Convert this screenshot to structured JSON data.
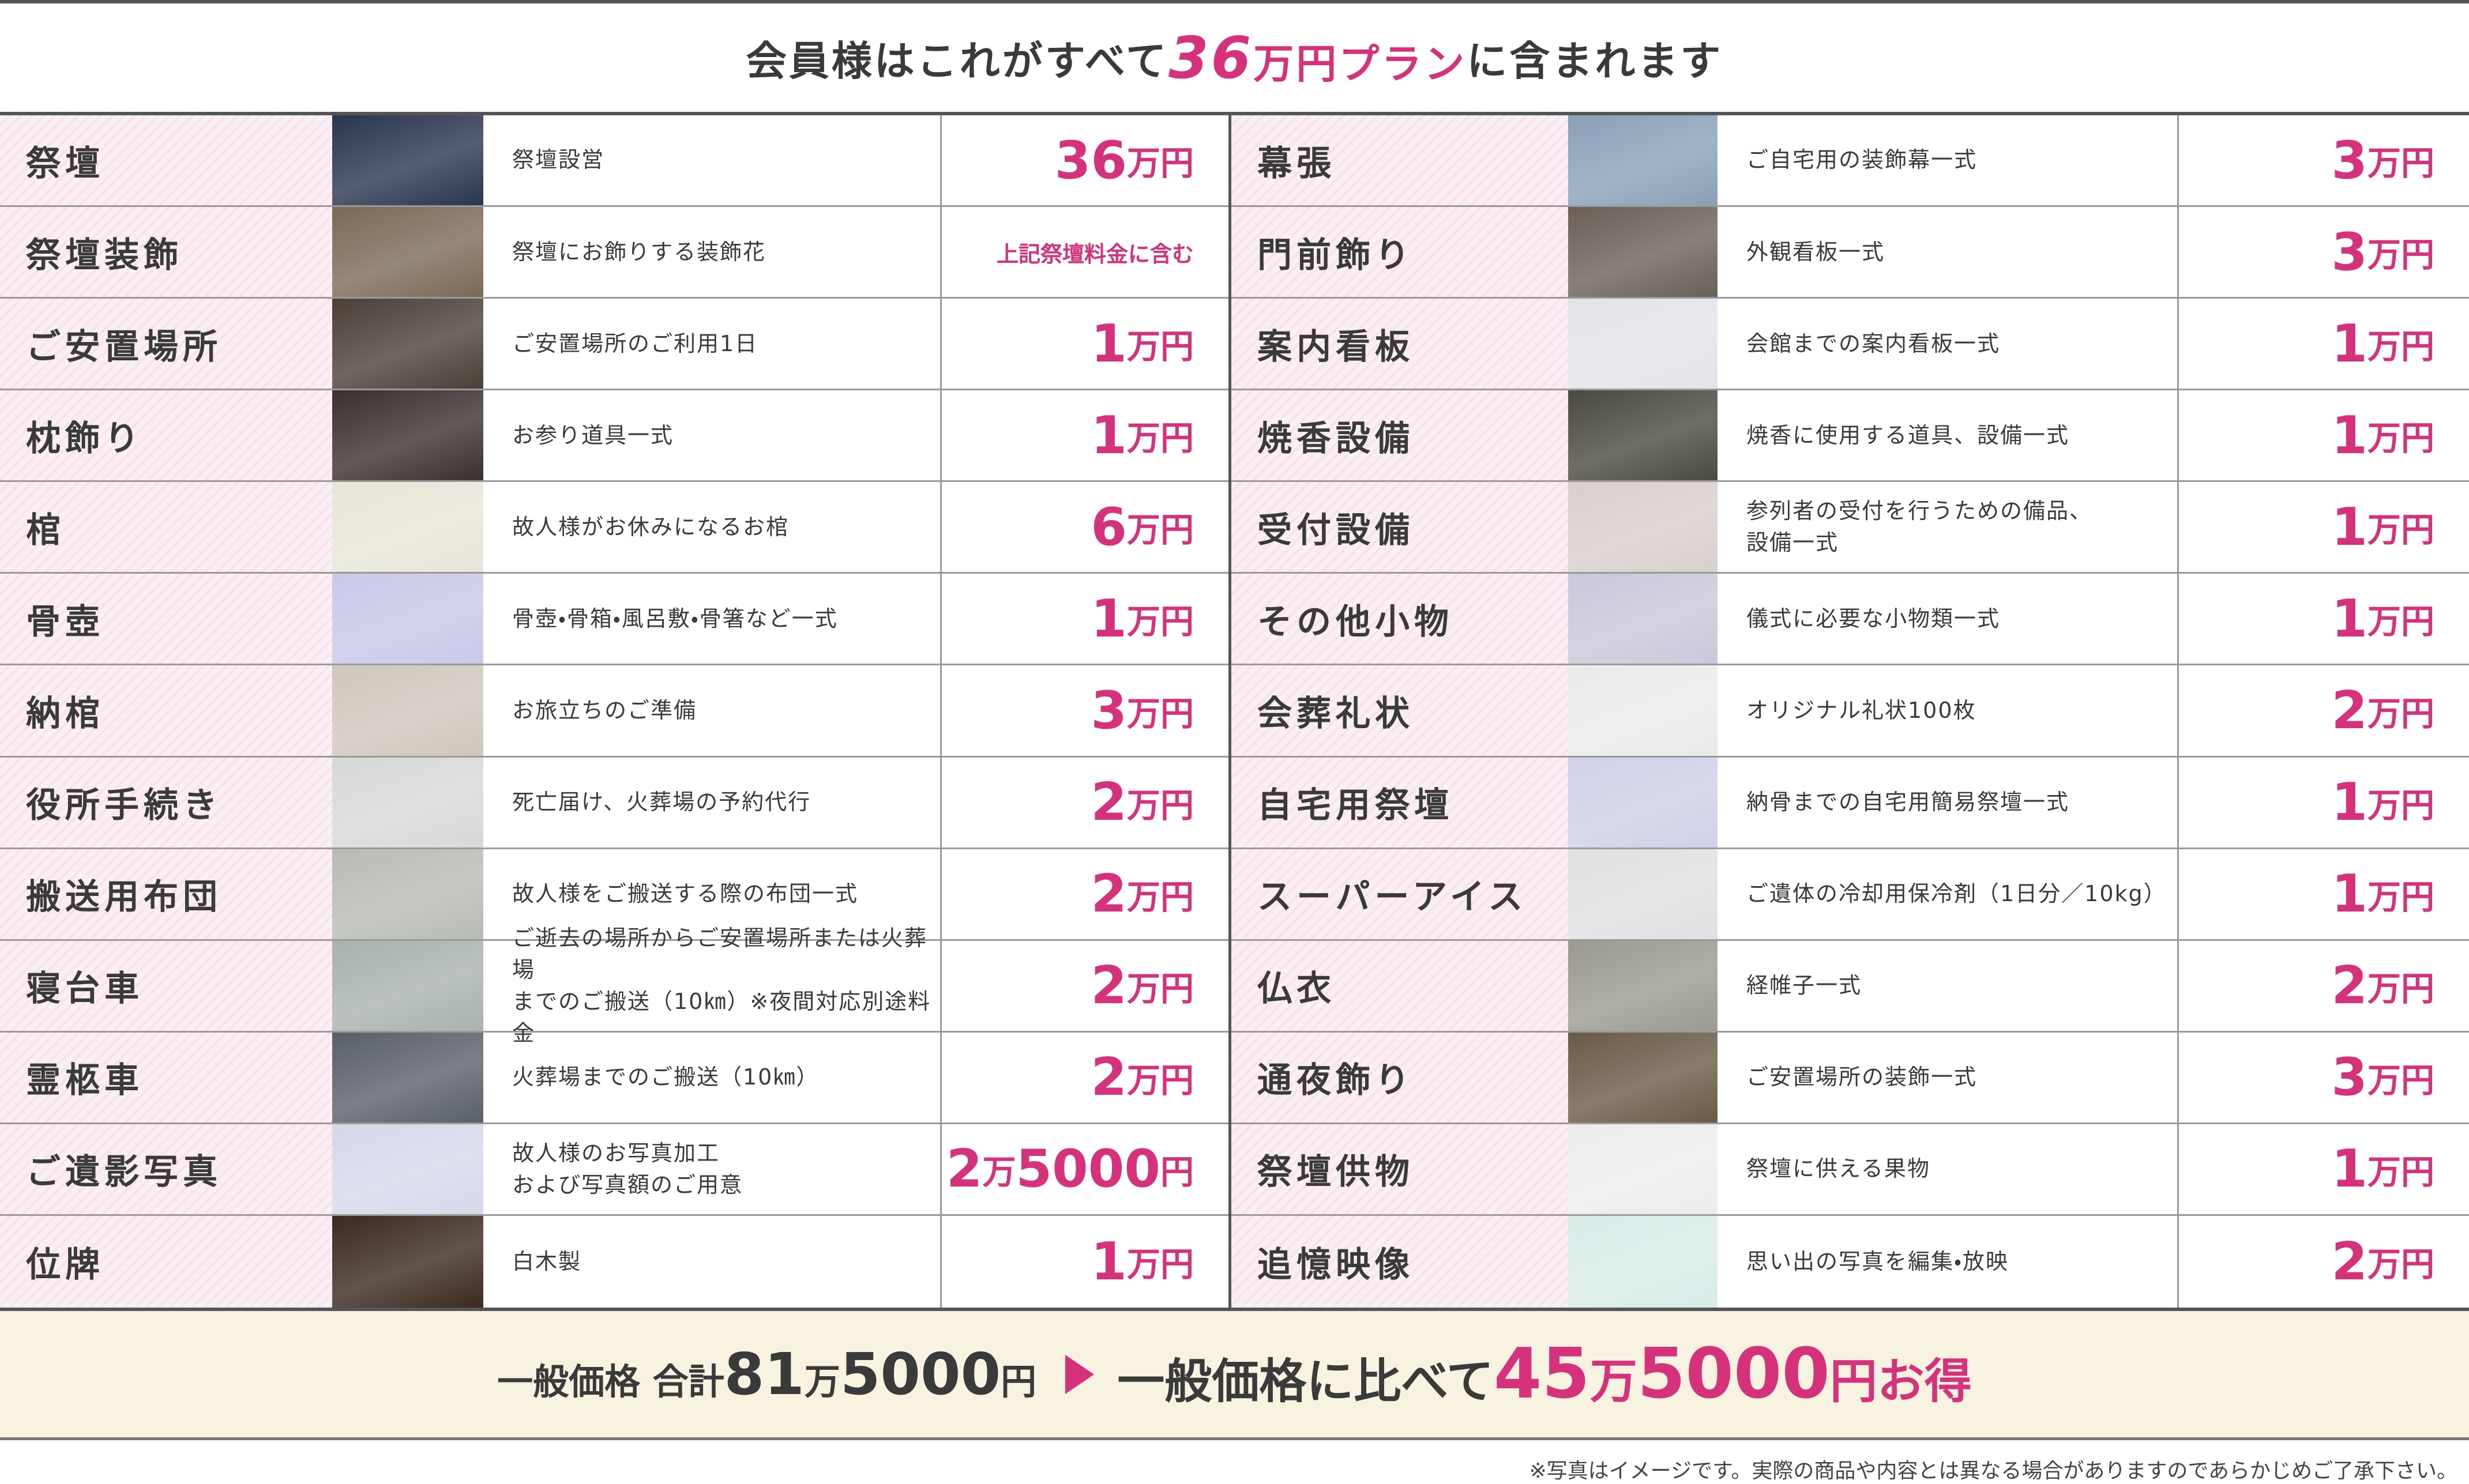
{
  "header": {
    "title": {
      "before": "会員様はこれがすべて",
      "highlight": "36万円プラン",
      "after": "に含まれます"
    }
  },
  "table": {
    "left": [
      {
        "name": "祭壇",
        "desc": "祭壇設営",
        "price": "36万円"
      },
      {
        "name": "祭壇装飾",
        "desc": "祭壇にお飾りする装飾花",
        "price": "上記祭壇料金に含む"
      },
      {
        "name": "ご安置場所",
        "desc": "ご安置場所のご利用1日",
        "price": "1万円"
      },
      {
        "name": "枕飾り",
        "desc": "お参り道具一式",
        "price": "1万円"
      },
      {
        "name": "棺",
        "desc": "故人様がお休みになるお棺",
        "price": "6万円"
      },
      {
        "name": "骨壺",
        "desc": "骨壺・骨箱・風呂敷・骨箸など一式",
        "price": "1万円"
      },
      {
        "name": "納棺",
        "desc": "お旅立ちのご準備",
        "price": "3万円"
      },
      {
        "name": "役所手続き",
        "desc": "死亡届け、火葬場の予約代行",
        "price": "2万円"
      },
      {
        "name": "搬送用布団",
        "desc": "故人様をご搬送する際の布団一式",
        "price": "2万円"
      },
      {
        "name": "寝台車",
        "desc": "ご逝去の場所からご安置場所または火葬場\nまでのご搬送（10㎞）※夜間対応別途料金",
        "price": "2万円"
      },
      {
        "name": "霊柩車",
        "desc": "火葬場までのご搬送（10㎞）",
        "price": "2万円"
      },
      {
        "name": "ご遺影写真",
        "desc": "故人様のお写真加工\nおよび写真額のご用意",
        "price": "2万5000円"
      },
      {
        "name": "位牌",
        "desc": "白木製",
        "price": "1万円"
      }
    ],
    "right": [
      {
        "name": "幕張",
        "desc": "ご自宅用の装飾幕一式",
        "price": "3万円"
      },
      {
        "name": "門前飾り",
        "desc": "外観看板一式",
        "price": "3万円"
      },
      {
        "name": "案内看板",
        "desc": "会館までの案内看板一式",
        "price": "1万円"
      },
      {
        "name": "焼香設備",
        "desc": "焼香に使用する道具、設備一式",
        "price": "1万円"
      },
      {
        "name": "受付設備",
        "desc": "参列者の受付を行うための備品、\n設備一式",
        "price": "1万円"
      },
      {
        "name": "その他小物",
        "desc": "儀式に必要な小物類一式",
        "price": "1万円"
      },
      {
        "name": "会葬礼状",
        "desc": "オリジナル礼状100枚",
        "price": "2万円"
      },
      {
        "name": "自宅用祭壇",
        "desc": "納骨までの自宅用簡易祭壇一式",
        "price": "1万円"
      },
      {
        "name": "スーパーアイス",
        "desc": "ご遺体の冷却用保冷剤（1日分／10kg）",
        "price": "1万円"
      },
      {
        "name": "仏衣",
        "desc": "経帷子一式",
        "price": "2万円"
      },
      {
        "name": "通夜飾り",
        "desc": "ご安置場所の装飾一式",
        "price": "3万円"
      },
      {
        "name": "祭壇供物",
        "desc": "祭壇に供える果物",
        "price": "1万円"
      },
      {
        "name": "追憶映像",
        "desc": "思い出の写真を編集・放映",
        "price": "2万円"
      }
    ]
  },
  "footer": {
    "total": "一般価格 合計81万5000円",
    "saving_prefix": "一般価格に比べて",
    "saving": "45万5000円お得"
  },
  "note": "※写真はイメージです。実際の商品や内容とは異なる場合がありますのであらかじめご了承下さい。"
}
